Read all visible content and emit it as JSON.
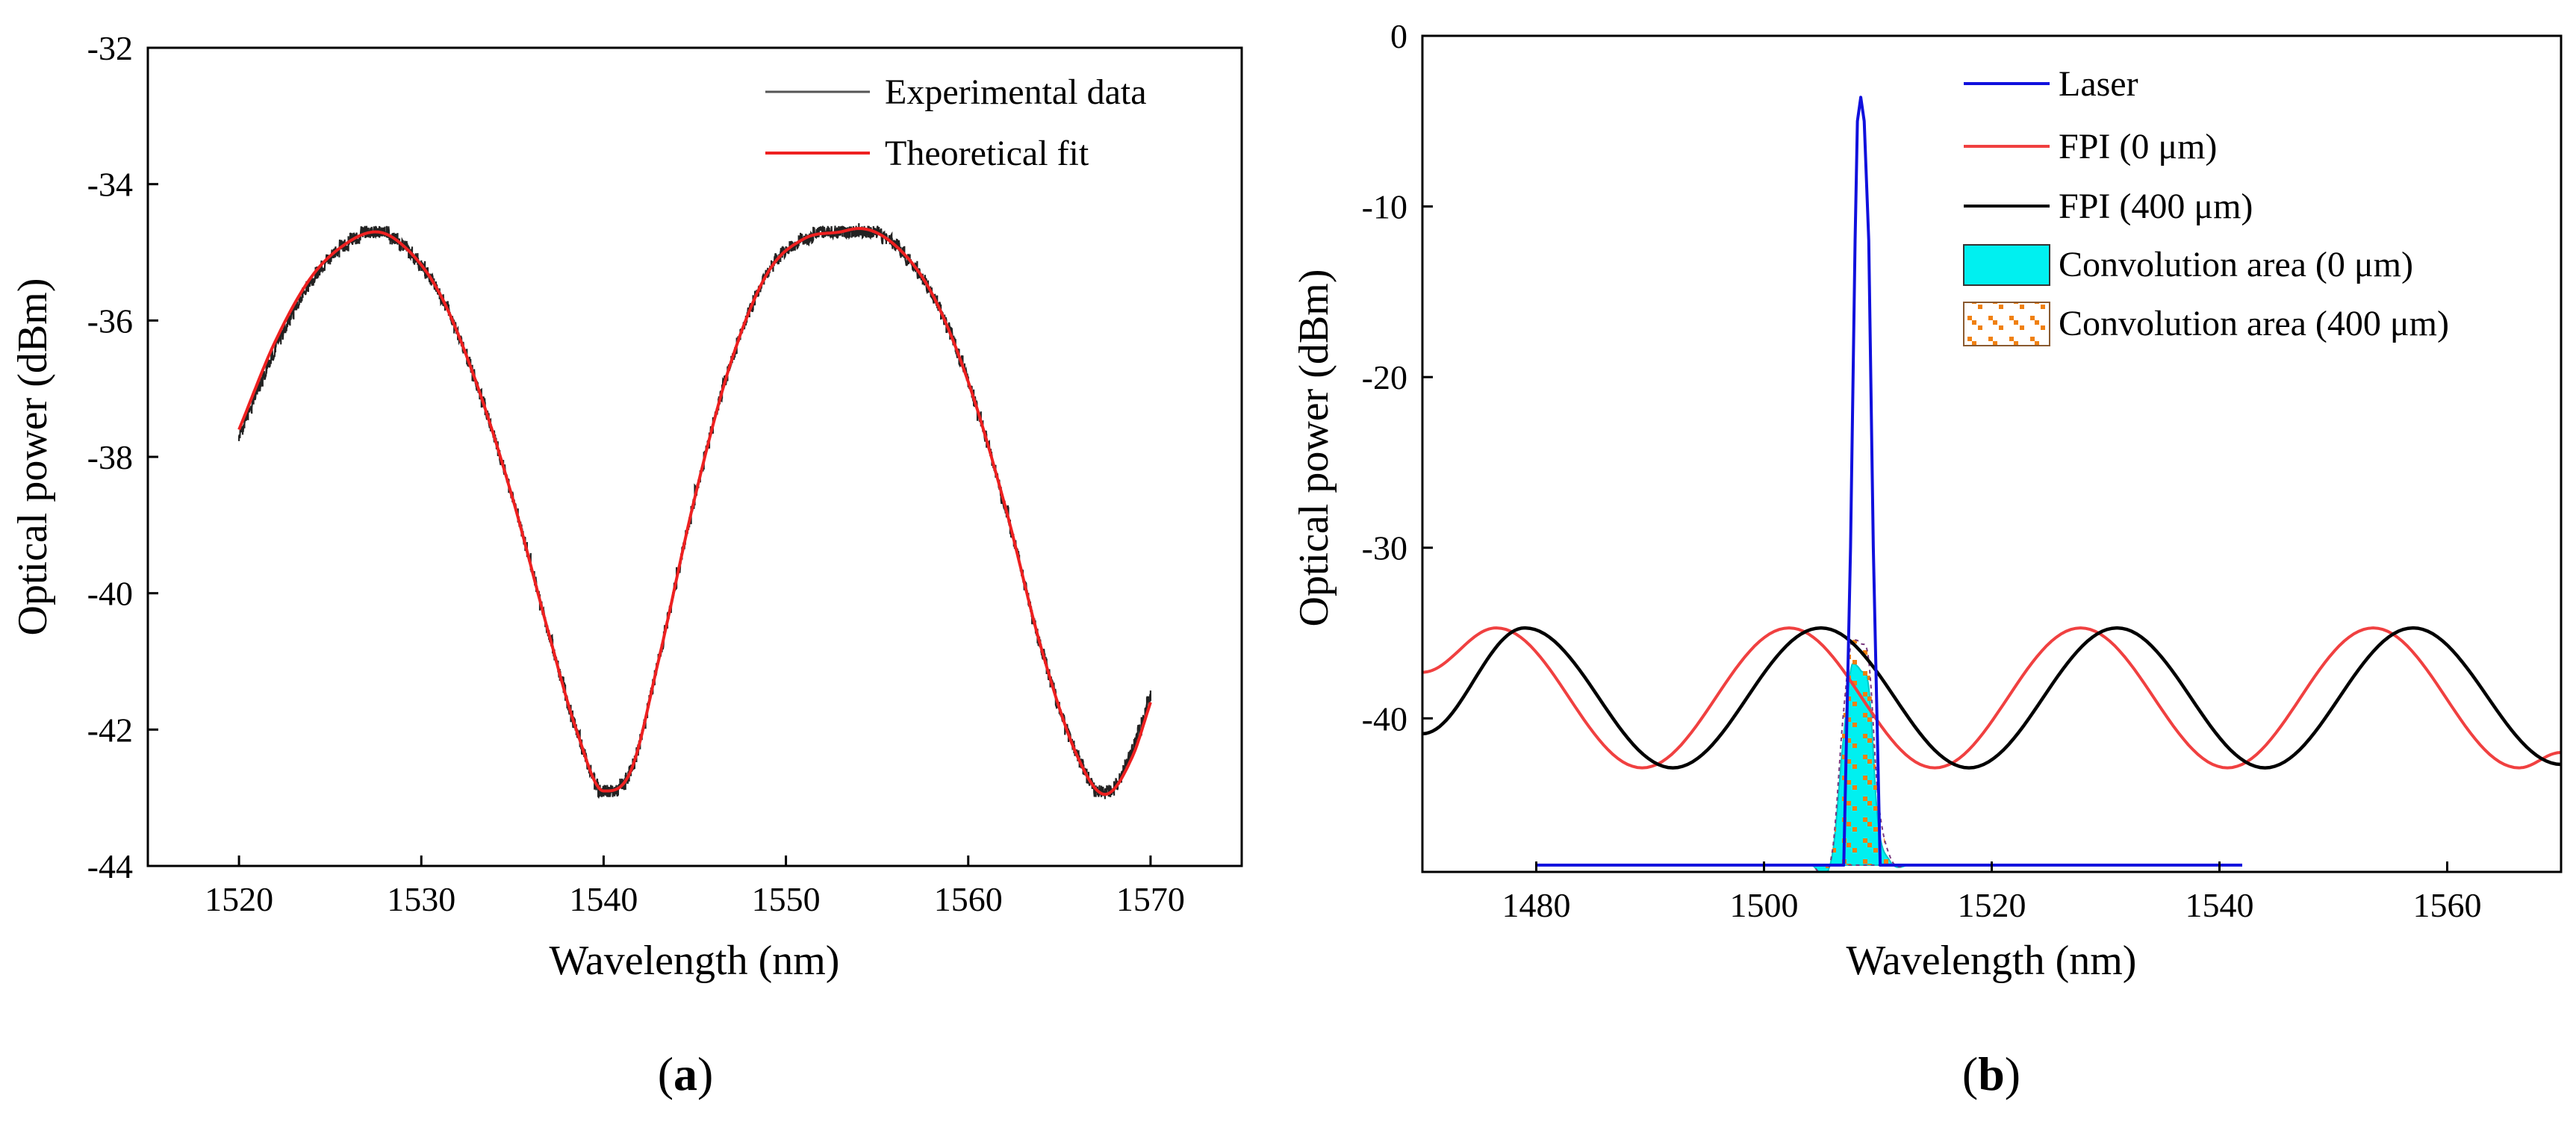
{
  "panels": [
    {
      "open": "(",
      "letter": "a",
      "close": ")"
    },
    {
      "open": "(",
      "letter": "b",
      "close": ")"
    }
  ],
  "chart_data": [
    {
      "type": "line",
      "xlabel": "Wavelength (nm)",
      "ylabel": "Optical power (dBm)",
      "xlim": [
        1515,
        1575
      ],
      "ylim": [
        -44,
        -32
      ],
      "xticks": [
        1520,
        1530,
        1540,
        1550,
        1560,
        1570
      ],
      "yticks": [
        -44,
        -42,
        -40,
        -38,
        -36,
        -34,
        -32
      ],
      "legend_position": "top-right",
      "series": [
        {
          "name": "Experimental data",
          "color": "#222222",
          "x": [
            1520,
            1522,
            1524,
            1526,
            1527.5,
            1529,
            1531,
            1533,
            1535,
            1537,
            1538.5,
            1540,
            1541.5,
            1543,
            1545,
            1547,
            1549,
            1551,
            1553,
            1554,
            1556,
            1558,
            1560,
            1562,
            1564,
            1566,
            1567.5,
            1569,
            1570
          ],
          "y": [
            -37.7,
            -36.4,
            -35.4,
            -34.85,
            -34.7,
            -34.9,
            -35.6,
            -36.9,
            -38.6,
            -40.6,
            -42.0,
            -42.9,
            -42.6,
            -41.0,
            -38.6,
            -36.6,
            -35.3,
            -34.8,
            -34.7,
            -34.65,
            -34.9,
            -35.6,
            -36.9,
            -38.7,
            -40.8,
            -42.4,
            -42.95,
            -42.3,
            -41.5
          ]
        },
        {
          "name": "Theoretical fit",
          "color": "#ee2020",
          "x": [
            1520,
            1522,
            1524,
            1526,
            1527.5,
            1529,
            1531,
            1533,
            1535,
            1537,
            1538.5,
            1540,
            1541.5,
            1543,
            1545,
            1547,
            1549,
            1551,
            1553,
            1554,
            1556,
            1558,
            1560,
            1562,
            1564,
            1566,
            1567.5,
            1569,
            1570
          ],
          "y": [
            -37.6,
            -36.3,
            -35.35,
            -34.85,
            -34.7,
            -34.9,
            -35.6,
            -36.9,
            -38.6,
            -40.6,
            -42.0,
            -42.9,
            -42.6,
            -41.0,
            -38.6,
            -36.6,
            -35.3,
            -34.8,
            -34.7,
            -34.65,
            -34.9,
            -35.6,
            -36.9,
            -38.7,
            -40.8,
            -42.4,
            -42.95,
            -42.4,
            -41.6
          ]
        }
      ]
    },
    {
      "type": "line",
      "xlabel": "Wavelength (nm)",
      "ylabel": "Optical power (dBm)",
      "xlim": [
        1470,
        1570
      ],
      "ylim": [
        -49,
        0
      ],
      "xticks": [
        1480,
        1500,
        1520,
        1540,
        1560
      ],
      "yticks": [
        -40,
        -30,
        -20,
        -10,
        0
      ],
      "legend_position": "top-right",
      "series": [
        {
          "name": "Laser",
          "color": "#1010dd",
          "x": [
            1480,
            1507,
            1507.6,
            1508,
            1508.2,
            1508.5,
            1508.8,
            1509.2,
            1509.6,
            1510.2,
            1542
          ],
          "y": [
            -48.6,
            -48.6,
            -30,
            -12,
            -5,
            -3.6,
            -5,
            -12,
            -30,
            -48.6,
            -48.6
          ]
        },
        {
          "name": "FPI (0 μm)",
          "color": "#f04040",
          "x": [
            1470,
            1476.5,
            1489.3,
            1502.2,
            1515.0,
            1527.8,
            1540.7,
            1553.5,
            1566.3,
            1570
          ],
          "y": [
            -37.3,
            -34.7,
            -42.9,
            -34.7,
            -42.9,
            -34.7,
            -42.9,
            -34.7,
            -42.9,
            -42.0
          ]
        },
        {
          "name": "FPI (400 μm)",
          "color": "#000000",
          "x": [
            1470,
            1479.0,
            1492.0,
            1505.0,
            1518.0,
            1531.0,
            1544.0,
            1557.0,
            1570
          ],
          "y": [
            -40.9,
            -34.7,
            -42.9,
            -34.7,
            -42.9,
            -34.7,
            -42.9,
            -34.7,
            -42.7
          ]
        },
        {
          "name": "Convolution area (0 μm)",
          "color": "#00f0f0",
          "x": [
            1504,
            1506,
            1507,
            1507.8,
            1508.5,
            1509.2,
            1510,
            1511,
            1513
          ],
          "y": [
            -48.6,
            -48.0,
            -41.0,
            -36.8,
            -37.2,
            -38.2,
            -46.0,
            -48.3,
            -48.6
          ]
        },
        {
          "name": "Convolution area (400 μm)",
          "color": "#f08010",
          "x": [
            1504,
            1506,
            1507,
            1507.8,
            1508.5,
            1509.2,
            1510,
            1511,
            1513
          ],
          "y": [
            -48.6,
            -47.8,
            -39.5,
            -35.4,
            -35.6,
            -36.6,
            -44.5,
            -48.0,
            -48.6
          ]
        }
      ]
    }
  ]
}
